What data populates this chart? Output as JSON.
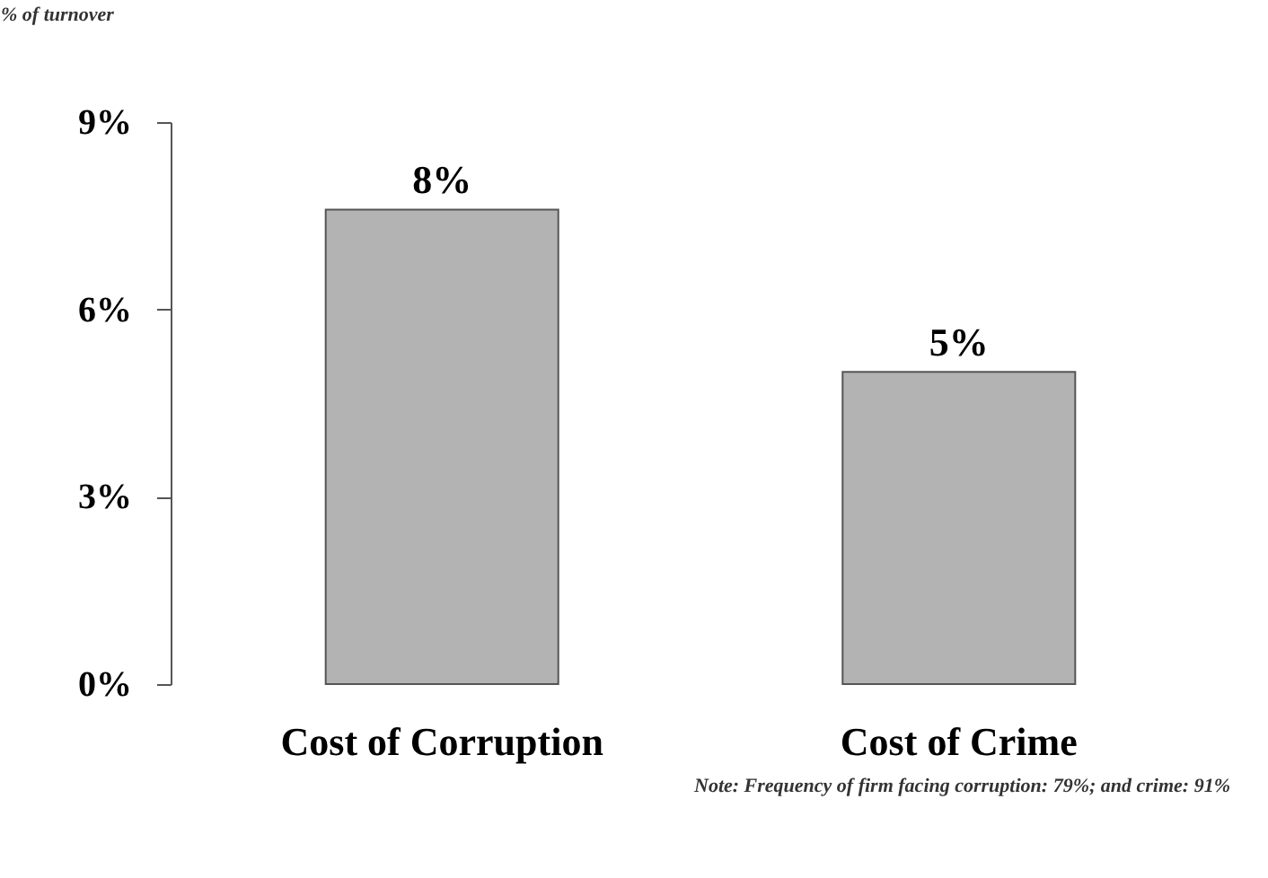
{
  "chart_data": {
    "type": "bar",
    "ylabel": "% of turnover",
    "categories": [
      "Cost of Corruption",
      "Cost of Crime"
    ],
    "values": [
      7.6,
      5.0
    ],
    "value_labels": [
      "8%",
      "5%"
    ],
    "color": "#b3b3b3",
    "ylim": [
      0,
      9
    ],
    "yticks": [
      {
        "value": 0,
        "label": "0%"
      },
      {
        "value": 3,
        "label": "3%"
      },
      {
        "value": 6,
        "label": "6%"
      },
      {
        "value": 9,
        "label": "9%"
      }
    ],
    "grid": false,
    "annotations": [
      "Note: Frequency of firm facing corruption: 79%; and crime: 91%"
    ]
  }
}
